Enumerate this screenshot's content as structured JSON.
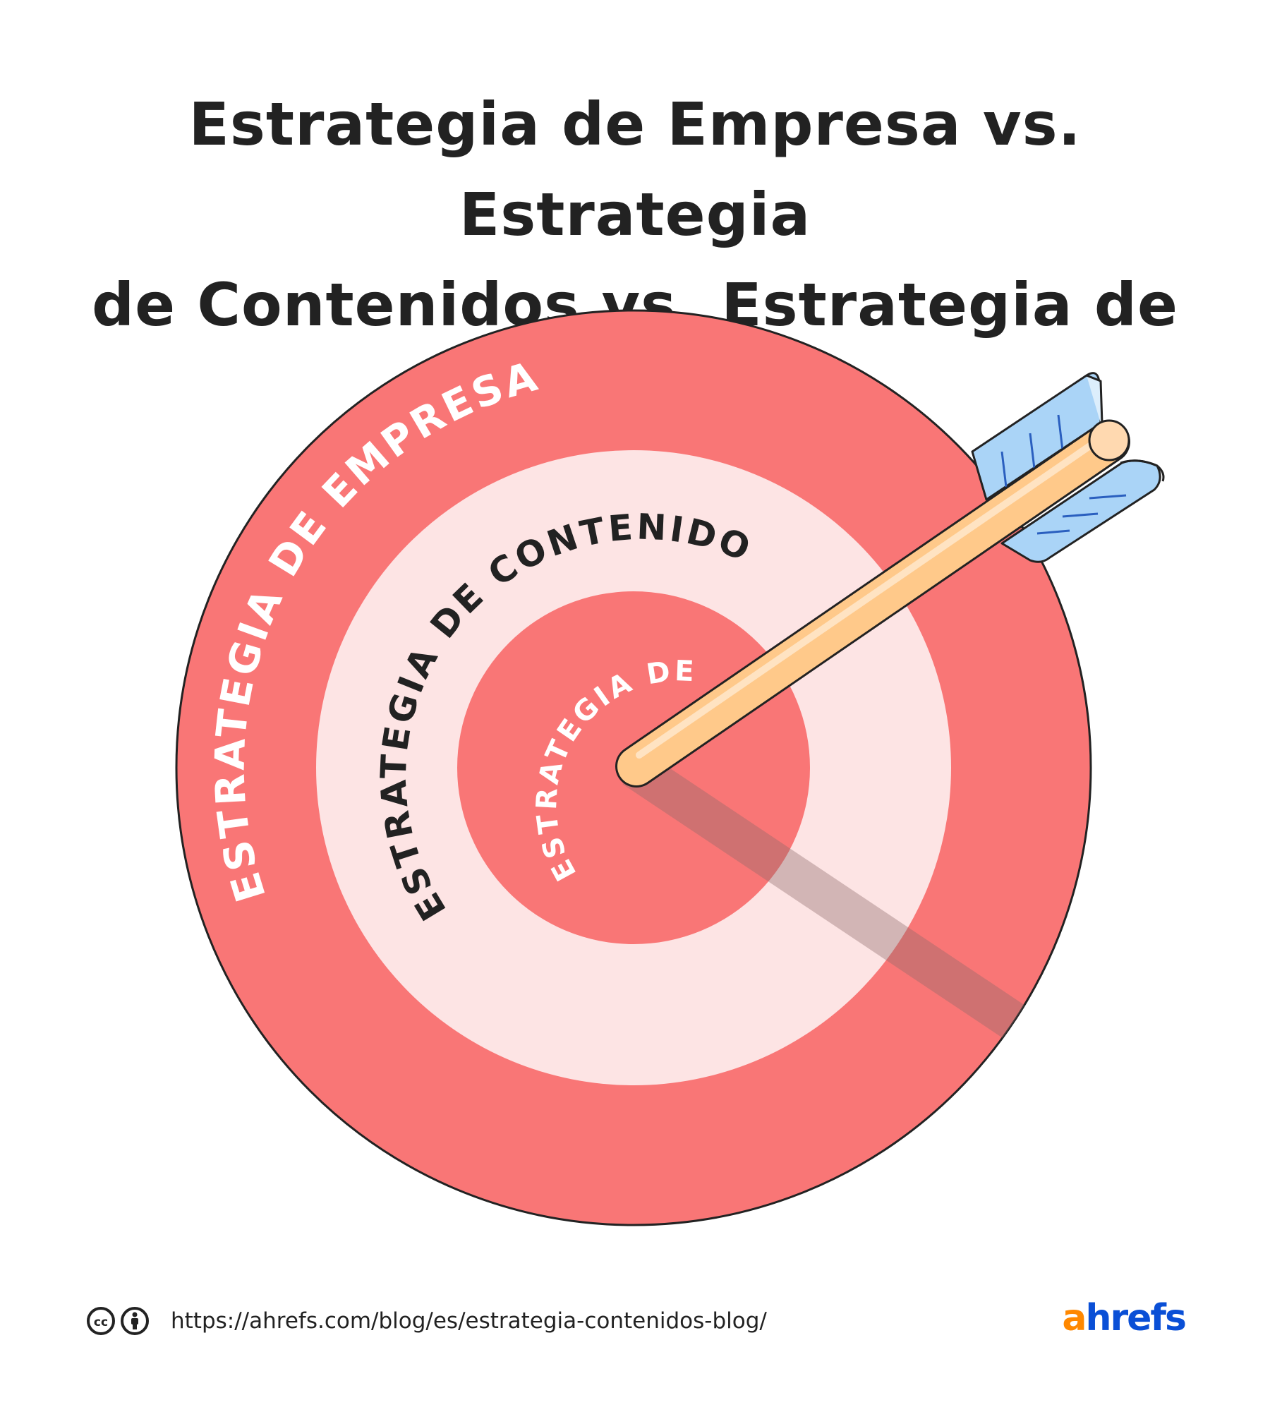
{
  "title": {
    "line1": "Estrategia de Empresa vs. Estrategia",
    "line2": "de Contenidos vs. Estrategia de Blog"
  },
  "rings": {
    "outer": "ESTRATEGIA DE EMPRESA",
    "middle": "ESTRATEGIA DE CONTENIDOS",
    "inner": "ESTRATEGIA DE BLOG"
  },
  "colors": {
    "outer_ring": "#f97676",
    "middle_ring": "#fde4e4",
    "inner_ring": "#f97676",
    "arrow_shaft": "#ffc98a",
    "arrow_fletching": "#aad4f7",
    "outline": "#222222"
  },
  "footer": {
    "license_icons": [
      "cc-icon",
      "attribution-icon"
    ],
    "url": "https://ahrefs.com/blog/es/estrategia-contenidos-blog/"
  },
  "logo": {
    "first": "a",
    "rest": "hrefs"
  }
}
